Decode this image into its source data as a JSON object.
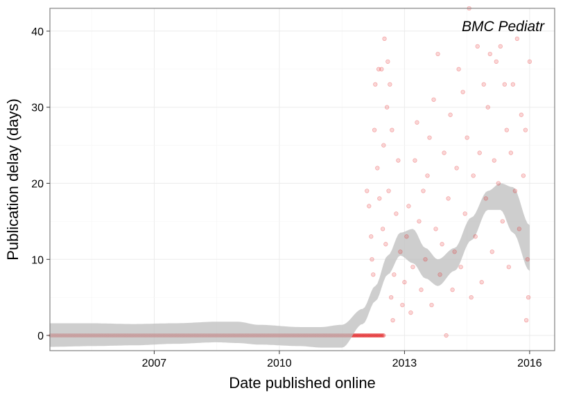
{
  "chart_data": {
    "type": "scatter",
    "annotation": "BMC Pediatr",
    "xlabel": "Date published online",
    "ylabel": "Publication delay (days)",
    "xlim": [
      2004.5,
      2016.6
    ],
    "ylim": [
      -2,
      43
    ],
    "x_ticks": [
      2007,
      2010,
      2013,
      2016
    ],
    "x_tick_labels": [
      "2007",
      "2010",
      "2013",
      "2016"
    ],
    "y_ticks": [
      0,
      10,
      20,
      30,
      40
    ],
    "y_tick_labels": [
      "0",
      "10",
      "20",
      "30",
      "40"
    ],
    "grid": true,
    "colors": {
      "points": "#e31a1c",
      "band": "#bdbdbd",
      "panel_border": "#7f7f7f"
    },
    "point_opacity": 0.18,
    "zero_delay_segments": [
      {
        "x_start": 2004.5,
        "x_end": 2012.5,
        "y": 0
      }
    ],
    "delay_points": [
      {
        "x": 2012.1,
        "y": 19
      },
      {
        "x": 2012.15,
        "y": 17
      },
      {
        "x": 2012.2,
        "y": 13
      },
      {
        "x": 2012.22,
        "y": 10
      },
      {
        "x": 2012.25,
        "y": 8
      },
      {
        "x": 2012.28,
        "y": 27
      },
      {
        "x": 2012.3,
        "y": 33
      },
      {
        "x": 2012.35,
        "y": 22
      },
      {
        "x": 2012.38,
        "y": 35
      },
      {
        "x": 2012.4,
        "y": 18
      },
      {
        "x": 2012.45,
        "y": 35
      },
      {
        "x": 2012.48,
        "y": 14
      },
      {
        "x": 2012.5,
        "y": 25
      },
      {
        "x": 2012.52,
        "y": 39
      },
      {
        "x": 2012.55,
        "y": 12
      },
      {
        "x": 2012.58,
        "y": 30
      },
      {
        "x": 2012.6,
        "y": 36
      },
      {
        "x": 2012.62,
        "y": 19
      },
      {
        "x": 2012.65,
        "y": 33
      },
      {
        "x": 2012.68,
        "y": 5
      },
      {
        "x": 2012.7,
        "y": 27
      },
      {
        "x": 2012.72,
        "y": 2
      },
      {
        "x": 2012.75,
        "y": 8
      },
      {
        "x": 2012.8,
        "y": 16
      },
      {
        "x": 2012.85,
        "y": 23
      },
      {
        "x": 2012.9,
        "y": 11
      },
      {
        "x": 2012.95,
        "y": 4
      },
      {
        "x": 2013.0,
        "y": 7
      },
      {
        "x": 2013.05,
        "y": 13
      },
      {
        "x": 2013.1,
        "y": 17
      },
      {
        "x": 2013.15,
        "y": 3
      },
      {
        "x": 2013.2,
        "y": 9
      },
      {
        "x": 2013.25,
        "y": 23
      },
      {
        "x": 2013.3,
        "y": 28
      },
      {
        "x": 2013.35,
        "y": 15
      },
      {
        "x": 2013.4,
        "y": 6
      },
      {
        "x": 2013.45,
        "y": 19
      },
      {
        "x": 2013.5,
        "y": 10
      },
      {
        "x": 2013.55,
        "y": 21
      },
      {
        "x": 2013.6,
        "y": 26
      },
      {
        "x": 2013.65,
        "y": 4
      },
      {
        "x": 2013.7,
        "y": 31
      },
      {
        "x": 2013.75,
        "y": 14
      },
      {
        "x": 2013.8,
        "y": 37
      },
      {
        "x": 2013.85,
        "y": 8
      },
      {
        "x": 2013.9,
        "y": 12
      },
      {
        "x": 2013.95,
        "y": 24
      },
      {
        "x": 2014.0,
        "y": 0
      },
      {
        "x": 2014.05,
        "y": 18
      },
      {
        "x": 2014.1,
        "y": 29
      },
      {
        "x": 2014.15,
        "y": 6
      },
      {
        "x": 2014.2,
        "y": 11
      },
      {
        "x": 2014.25,
        "y": 22
      },
      {
        "x": 2014.3,
        "y": 35
      },
      {
        "x": 2014.35,
        "y": 9
      },
      {
        "x": 2014.4,
        "y": 32
      },
      {
        "x": 2014.45,
        "y": 16
      },
      {
        "x": 2014.5,
        "y": 26
      },
      {
        "x": 2014.55,
        "y": 43
      },
      {
        "x": 2014.6,
        "y": 5
      },
      {
        "x": 2014.65,
        "y": 21
      },
      {
        "x": 2014.7,
        "y": 13
      },
      {
        "x": 2014.75,
        "y": 38
      },
      {
        "x": 2014.8,
        "y": 24
      },
      {
        "x": 2014.85,
        "y": 7
      },
      {
        "x": 2014.9,
        "y": 33
      },
      {
        "x": 2014.95,
        "y": 18
      },
      {
        "x": 2015.0,
        "y": 30
      },
      {
        "x": 2015.05,
        "y": 37
      },
      {
        "x": 2015.1,
        "y": 11
      },
      {
        "x": 2015.15,
        "y": 23
      },
      {
        "x": 2015.2,
        "y": 36
      },
      {
        "x": 2015.25,
        "y": 20
      },
      {
        "x": 2015.3,
        "y": 38
      },
      {
        "x": 2015.35,
        "y": 15
      },
      {
        "x": 2015.4,
        "y": 33
      },
      {
        "x": 2015.45,
        "y": 27
      },
      {
        "x": 2015.5,
        "y": 9
      },
      {
        "x": 2015.55,
        "y": 24
      },
      {
        "x": 2015.6,
        "y": 33
      },
      {
        "x": 2015.65,
        "y": 19
      },
      {
        "x": 2015.7,
        "y": 39
      },
      {
        "x": 2015.75,
        "y": 14
      },
      {
        "x": 2015.8,
        "y": 29
      },
      {
        "x": 2015.85,
        "y": 21
      },
      {
        "x": 2015.9,
        "y": 27
      },
      {
        "x": 2015.95,
        "y": 10
      },
      {
        "x": 2016.0,
        "y": 36
      },
      {
        "x": 2015.97,
        "y": 5
      },
      {
        "x": 2015.92,
        "y": 2
      }
    ],
    "smooth": {
      "x": [
        2004.5,
        2005.5,
        2006.5,
        2007.5,
        2008.5,
        2009.0,
        2009.5,
        2010.5,
        2011.0,
        2011.5,
        2012.0,
        2012.3,
        2012.6,
        2012.9,
        2013.2,
        2013.5,
        2013.8,
        2014.2,
        2014.6,
        2015.0,
        2015.3,
        2015.6,
        2016.0
      ],
      "lower": [
        -1.5,
        -1.4,
        -1.3,
        -1.1,
        -0.9,
        -1.0,
        -1.2,
        -1.4,
        -1.6,
        -1.6,
        1.5,
        4.5,
        8.0,
        10.5,
        9.5,
        7.5,
        6.5,
        8.5,
        12.5,
        16.5,
        16.5,
        13.5,
        8.5
      ],
      "upper": [
        1.6,
        1.6,
        1.5,
        1.6,
        1.8,
        1.8,
        1.4,
        1.1,
        1.1,
        1.4,
        3.5,
        6.5,
        10.5,
        13.5,
        14.0,
        11.5,
        10.0,
        11.5,
        15.5,
        19.0,
        20.0,
        19.5,
        14.5
      ]
    }
  }
}
